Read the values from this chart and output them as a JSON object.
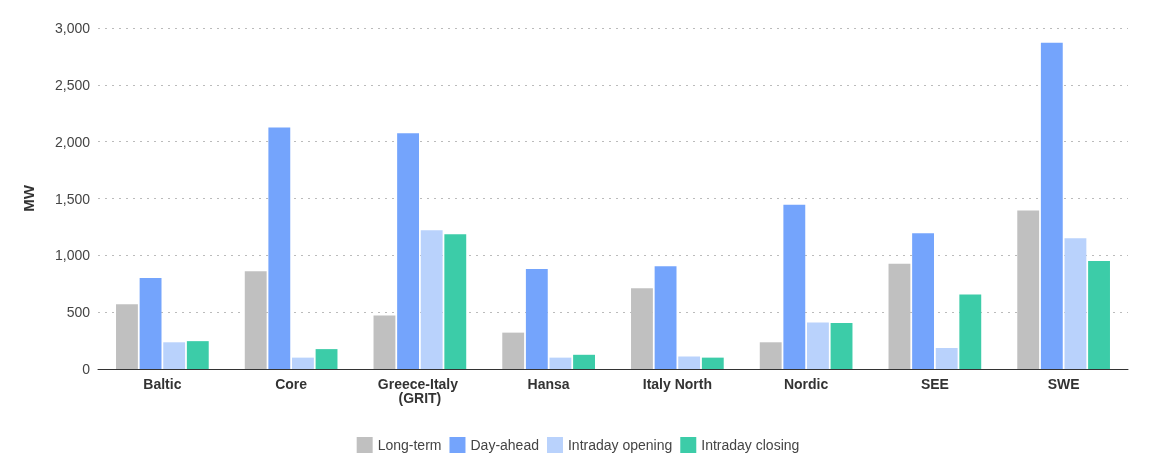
{
  "chart_data": {
    "type": "bar",
    "ylabel": "MW",
    "categories": [
      "Baltic",
      "Core",
      "Greece-Italy (GRIT)",
      "Hansa",
      "Italy North",
      "Nordic",
      "SEE",
      "SWE"
    ],
    "series": [
      {
        "name": "Long-term",
        "color": "#c0c0c0",
        "values": [
          570,
          860,
          470,
          320,
          710,
          235,
          925,
          1395
        ]
      },
      {
        "name": "Day-ahead",
        "color": "#74a4fc",
        "values": [
          800,
          2125,
          2075,
          880,
          905,
          1445,
          1195,
          2870
        ]
      },
      {
        "name": "Intraday opening",
        "color": "#b9d2fc",
        "values": [
          235,
          100,
          1220,
          100,
          110,
          410,
          185,
          1150
        ]
      },
      {
        "name": "Intraday closing",
        "color": "#3ccca8",
        "values": [
          245,
          175,
          1185,
          125,
          100,
          405,
          655,
          950
        ]
      }
    ],
    "ylim": [
      0,
      3000
    ],
    "yticks": [
      {
        "value": 0,
        "label": "0"
      },
      {
        "value": 500,
        "label": "500"
      },
      {
        "value": 1000,
        "label": "1,000"
      },
      {
        "value": 1500,
        "label": "1,500"
      },
      {
        "value": 2000,
        "label": "2,000"
      },
      {
        "value": 2500,
        "label": "2,500"
      },
      {
        "value": 3000,
        "label": "3,000"
      }
    ],
    "grid": "y",
    "legend": "bottom"
  }
}
